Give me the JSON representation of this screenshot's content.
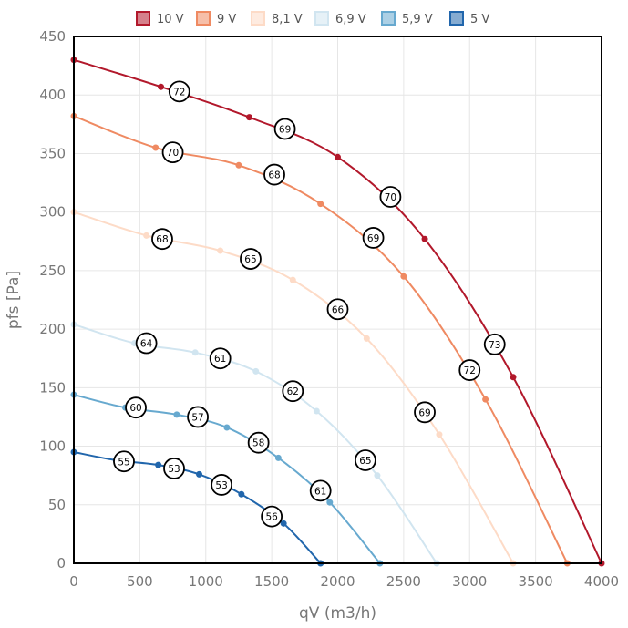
{
  "chart_data": {
    "type": "line",
    "xlabel": "qV (m3/h)",
    "ylabel": "pfs [Pa]",
    "xlim": [
      0,
      4000
    ],
    "ylim": [
      0,
      450
    ],
    "xticks": [
      0,
      500,
      1000,
      1500,
      2000,
      2500,
      3000,
      3500,
      4000
    ],
    "yticks": [
      0,
      50,
      100,
      150,
      200,
      250,
      300,
      350,
      400,
      450
    ],
    "grid": true,
    "legend_position": "top",
    "series": [
      {
        "name": "10 V",
        "color": "#b2182b",
        "x": [
          0,
          660,
          1330,
          2000,
          2660,
          3330,
          4000
        ],
        "y": [
          430,
          407,
          381,
          347,
          277,
          159,
          0
        ],
        "annotations": [
          {
            "x": 800,
            "y": 403,
            "label": "72"
          },
          {
            "x": 1600,
            "y": 371,
            "label": "69"
          },
          {
            "x": 2400,
            "y": 313,
            "label": "70"
          },
          {
            "x": 3190,
            "y": 187,
            "label": "73"
          }
        ]
      },
      {
        "name": "9 V",
        "color": "#ef8a62",
        "x": [
          0,
          620,
          1250,
          1870,
          2500,
          3120,
          3740
        ],
        "y": [
          382,
          355,
          340,
          307,
          245,
          140,
          0
        ],
        "annotations": [
          {
            "x": 750,
            "y": 351,
            "label": "70"
          },
          {
            "x": 1520,
            "y": 332,
            "label": "68"
          },
          {
            "x": 2270,
            "y": 278,
            "label": "69"
          },
          {
            "x": 3000,
            "y": 165,
            "label": "72"
          }
        ]
      },
      {
        "name": "8,1 V",
        "color": "#fddbc7",
        "x": [
          0,
          550,
          1110,
          1660,
          2220,
          2770,
          3330
        ],
        "y": [
          300,
          280,
          267,
          242,
          192,
          110,
          0
        ],
        "annotations": [
          {
            "x": 670,
            "y": 277,
            "label": "68"
          },
          {
            "x": 1340,
            "y": 260,
            "label": "65"
          },
          {
            "x": 2000,
            "y": 217,
            "label": "66"
          },
          {
            "x": 2660,
            "y": 129,
            "label": "69"
          }
        ]
      },
      {
        "name": "6,9 V",
        "color": "#d1e5f0",
        "x": [
          0,
          460,
          920,
          1380,
          1840,
          2300,
          2750
        ],
        "y": [
          204,
          188,
          180,
          164,
          130,
          75,
          0
        ],
        "annotations": [
          {
            "x": 550,
            "y": 188,
            "label": "64"
          },
          {
            "x": 1110,
            "y": 175,
            "label": "61"
          },
          {
            "x": 1660,
            "y": 147,
            "label": "62"
          },
          {
            "x": 2210,
            "y": 88,
            "label": "65"
          }
        ]
      },
      {
        "name": "5,9 V",
        "color": "#67a9cf",
        "x": [
          0,
          390,
          780,
          1160,
          1550,
          1940,
          2320
        ],
        "y": [
          144,
          133,
          127,
          116,
          90,
          52,
          0
        ],
        "annotations": [
          {
            "x": 470,
            "y": 133,
            "label": "60"
          },
          {
            "x": 940,
            "y": 125,
            "label": "57"
          },
          {
            "x": 1400,
            "y": 103,
            "label": "58"
          },
          {
            "x": 1870,
            "y": 62,
            "label": "61"
          }
        ]
      },
      {
        "name": "5 V",
        "color": "#2166ac",
        "x": [
          0,
          320,
          640,
          950,
          1270,
          1590,
          1870
        ],
        "y": [
          95,
          88,
          84,
          76,
          59,
          34,
          0
        ],
        "annotations": [
          {
            "x": 380,
            "y": 87,
            "label": "55"
          },
          {
            "x": 760,
            "y": 81,
            "label": "53"
          },
          {
            "x": 1120,
            "y": 67,
            "label": "53"
          },
          {
            "x": 1500,
            "y": 40,
            "label": "56"
          }
        ]
      }
    ]
  }
}
